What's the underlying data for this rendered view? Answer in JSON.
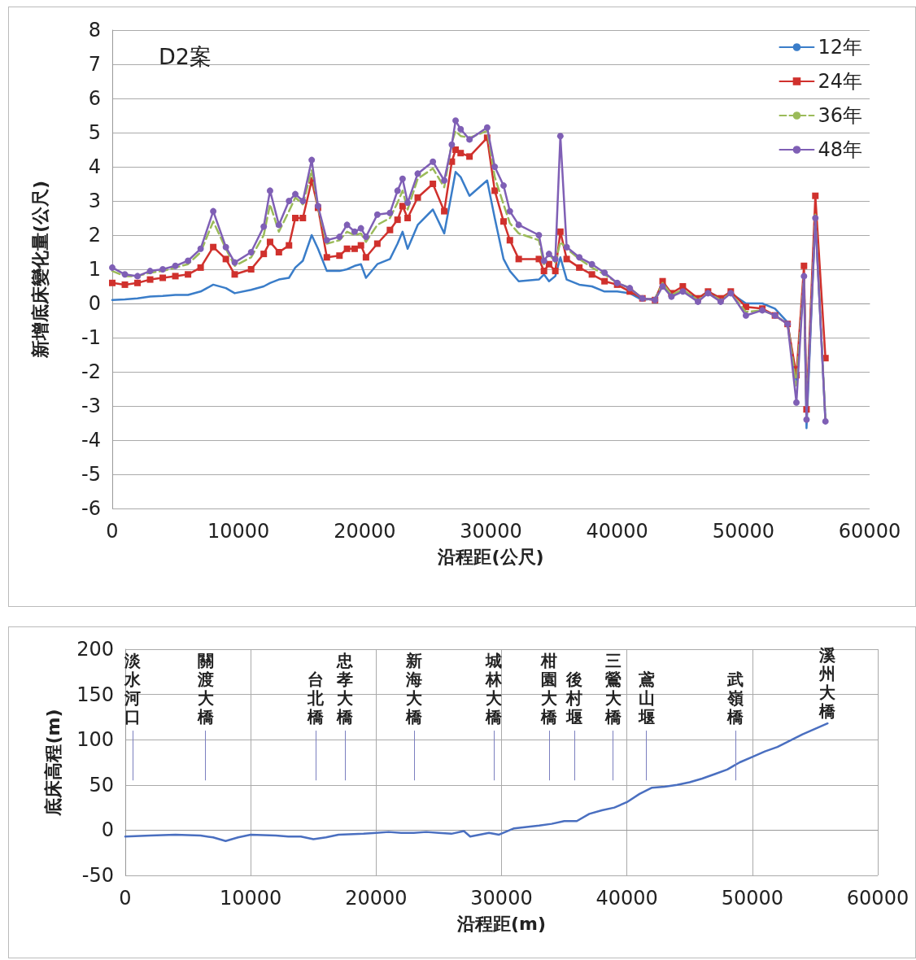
{
  "chart_data": [
    {
      "type": "line",
      "title": "D2案",
      "xlabel": "沿程距(公尺)",
      "ylabel": "新增底床變化量(公尺)",
      "xlim": [
        0,
        60000
      ],
      "xticks": [
        0,
        10000,
        20000,
        30000,
        40000,
        50000,
        60000
      ],
      "ylim": [
        -6,
        8
      ],
      "yticks": [
        -6,
        -5,
        -4,
        -3,
        -2,
        -1,
        0,
        1,
        2,
        3,
        4,
        5,
        6,
        7,
        8
      ],
      "grid": "y",
      "legend": "top right",
      "x": [
        0,
        1000,
        2000,
        3000,
        4000,
        5000,
        6000,
        7000,
        8000,
        9000,
        9700,
        11000,
        12000,
        12500,
        13200,
        14000,
        14500,
        15100,
        15800,
        16300,
        17000,
        18000,
        18600,
        19200,
        19700,
        20100,
        21000,
        22000,
        22600,
        23000,
        23400,
        24200,
        25400,
        26300,
        26900,
        27200,
        27600,
        28300,
        29700,
        30300,
        31000,
        31500,
        32200,
        33800,
        34200,
        34600,
        35100,
        35500,
        36000,
        37000,
        38000,
        39000,
        40000,
        41000,
        42000,
        43000,
        43600,
        44300,
        45200,
        46400,
        47200,
        48200,
        49000,
        50200,
        51500,
        52500,
        53500,
        54200,
        54800,
        55000,
        55700,
        56500
      ],
      "series": [
        {
          "name": "12年",
          "color": "#3a7dc9",
          "marker": "none",
          "line_style": "solid",
          "values": [
            0.1,
            0.12,
            0.15,
            0.2,
            0.22,
            0.25,
            0.25,
            0.35,
            0.55,
            0.45,
            0.3,
            0.4,
            0.5,
            0.6,
            0.7,
            0.75,
            1.05,
            1.25,
            2.0,
            1.6,
            0.95,
            0.95,
            1.0,
            1.1,
            1.15,
            0.75,
            1.15,
            1.3,
            1.75,
            2.1,
            1.6,
            2.3,
            2.75,
            2.05,
            3.25,
            3.85,
            3.7,
            3.15,
            3.6,
            2.5,
            1.3,
            0.95,
            0.65,
            0.7,
            0.85,
            0.65,
            0.8,
            1.35,
            0.7,
            0.55,
            0.5,
            0.35,
            0.35,
            0.3,
            0.1,
            0.15,
            0.55,
            0.25,
            0.35,
            0.15,
            0.35,
            0.15,
            0.3,
            0.0,
            0.0,
            -0.15,
            -0.55,
            -2.3,
            0.8,
            -3.65,
            2.5,
            -3.45
          ]
        },
        {
          "name": "24年",
          "color": "#d0312d",
          "marker": "square",
          "line_style": "solid",
          "values": [
            0.6,
            0.55,
            0.6,
            0.7,
            0.75,
            0.8,
            0.85,
            1.05,
            1.65,
            1.3,
            0.85,
            1.0,
            1.45,
            1.8,
            1.5,
            1.7,
            2.5,
            2.5,
            3.6,
            2.8,
            1.35,
            1.4,
            1.6,
            1.6,
            1.7,
            1.35,
            1.75,
            2.15,
            2.45,
            2.85,
            2.5,
            3.1,
            3.5,
            2.7,
            4.15,
            4.5,
            4.4,
            4.3,
            4.85,
            3.3,
            2.4,
            1.85,
            1.3,
            1.3,
            0.95,
            1.15,
            0.95,
            2.1,
            1.3,
            1.05,
            0.85,
            0.65,
            0.55,
            0.35,
            0.15,
            0.1,
            0.65,
            0.3,
            0.5,
            0.15,
            0.35,
            0.15,
            0.35,
            -0.1,
            -0.15,
            -0.35,
            -0.6,
            -2.1,
            1.1,
            -3.1,
            3.15,
            -1.6
          ]
        },
        {
          "name": "36年",
          "color": "#9bbb59",
          "marker": "none",
          "line_style": "dashed",
          "values": [
            0.95,
            0.8,
            0.8,
            0.9,
            0.95,
            1.05,
            1.15,
            1.5,
            2.4,
            1.6,
            1.1,
            1.35,
            2.0,
            2.9,
            2.1,
            2.7,
            3.1,
            2.9,
            3.9,
            2.8,
            1.75,
            1.85,
            2.1,
            2.0,
            2.05,
            1.8,
            2.3,
            2.5,
            2.95,
            3.3,
            2.75,
            3.65,
            3.95,
            3.4,
            4.7,
            5.05,
            4.9,
            4.85,
            5.05,
            3.7,
            2.9,
            2.35,
            2.05,
            1.85,
            1.15,
            1.45,
            1.2,
            1.8,
            1.6,
            1.3,
            1.05,
            0.85,
            0.6,
            0.45,
            0.15,
            0.1,
            0.6,
            0.25,
            0.4,
            0.1,
            0.3,
            0.1,
            0.3,
            -0.25,
            -0.2,
            -0.35,
            -0.6,
            -2.4,
            0.85,
            -3.3,
            2.6,
            -3.4
          ]
        },
        {
          "name": "48年",
          "color": "#7f5fb5",
          "marker": "circle",
          "line_style": "solid",
          "values": [
            1.05,
            0.85,
            0.8,
            0.95,
            1.0,
            1.1,
            1.25,
            1.6,
            2.7,
            1.65,
            1.2,
            1.5,
            2.25,
            3.3,
            2.3,
            3.0,
            3.2,
            3.0,
            4.2,
            2.85,
            1.85,
            1.95,
            2.3,
            2.1,
            2.2,
            1.95,
            2.6,
            2.65,
            3.3,
            3.65,
            2.95,
            3.8,
            4.15,
            3.6,
            4.65,
            5.35,
            5.1,
            4.8,
            5.15,
            4.0,
            3.45,
            2.7,
            2.3,
            2.0,
            1.25,
            1.45,
            1.3,
            4.9,
            1.65,
            1.35,
            1.15,
            0.9,
            0.6,
            0.45,
            0.15,
            0.1,
            0.5,
            0.2,
            0.35,
            0.05,
            0.3,
            0.05,
            0.3,
            -0.35,
            -0.2,
            -0.35,
            -0.6,
            -2.9,
            0.8,
            -3.4,
            2.5,
            -3.45
          ]
        }
      ]
    },
    {
      "type": "line",
      "xlabel": "沿程距(m)",
      "ylabel": "底床高程(m)",
      "xlim": [
        0,
        60000
      ],
      "xticks": [
        0,
        10000,
        20000,
        30000,
        40000,
        50000,
        60000
      ],
      "ylim": [
        -50,
        200
      ],
      "yticks": [
        -50,
        0,
        50,
        100,
        150,
        200
      ],
      "grid": true,
      "marker": "none",
      "x": [
        0,
        2000,
        4000,
        6000,
        7000,
        8000,
        9000,
        10000,
        12000,
        13000,
        14000,
        15000,
        16000,
        17000,
        19000,
        20000,
        21000,
        22000,
        23000,
        24000,
        25000,
        26000,
        27000,
        27500,
        29000,
        29800,
        31000,
        33000,
        34000,
        35000,
        36000,
        37000,
        38000,
        39000,
        40000,
        41000,
        42000,
        43000,
        44000,
        45000,
        46000,
        47000,
        48000,
        48500,
        49000,
        50000,
        51000,
        52000,
        53000,
        54000,
        55000,
        56000
      ],
      "series": [
        {
          "color": "#4a6fc0",
          "values": [
            -7,
            -6,
            -5,
            -6,
            -8,
            -12,
            -8,
            -5,
            -6,
            -7,
            -7,
            -10,
            -8,
            -5,
            -4,
            -3,
            -2,
            -3,
            -3,
            -2,
            -3,
            -4,
            -1,
            -7,
            -3,
            -5,
            2,
            5,
            7,
            10,
            10,
            18,
            22,
            25,
            31,
            40,
            47,
            48,
            50,
            53,
            57,
            62,
            67,
            71,
            75,
            81,
            87,
            92,
            99,
            106,
            112,
            118
          ]
        }
      ],
      "ref_lines": [
        {
          "axis": "x",
          "value": 580,
          "label": "淡水河口"
        },
        {
          "axis": "x",
          "value": 6400,
          "label": "關渡大橋"
        },
        {
          "axis": "x",
          "value": 15200,
          "label": "台北橋"
        },
        {
          "axis": "x",
          "value": 17540,
          "label": "忠孝大橋"
        },
        {
          "axis": "x",
          "value": 23040,
          "label": "新海大橋"
        },
        {
          "axis": "x",
          "value": 29390,
          "label": "城林大橋"
        },
        {
          "axis": "x",
          "value": 33790,
          "label": "柑園大橋"
        },
        {
          "axis": "x",
          "value": 35790,
          "label": "後村堰"
        },
        {
          "axis": "x",
          "value": 38900,
          "label": "三鶯大橋"
        },
        {
          "axis": "x",
          "value": 41550,
          "label": "鳶山堰"
        },
        {
          "axis": "x",
          "value": 48670,
          "label": "武嶺橋"
        }
      ],
      "annotations": [
        {
          "text": "溪州大橋",
          "x": 56000,
          "y": 118
        }
      ]
    }
  ]
}
